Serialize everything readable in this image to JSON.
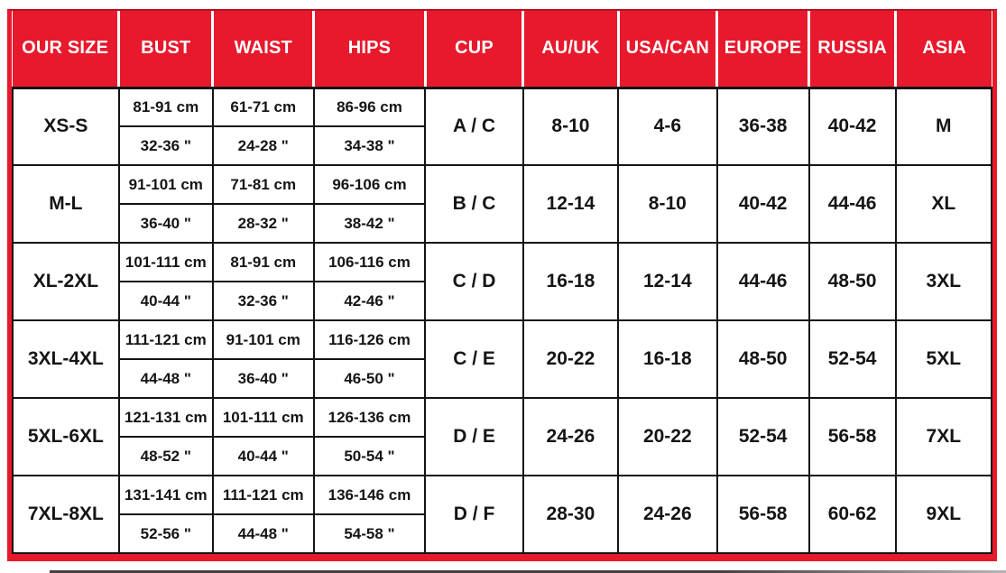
{
  "chart_data": {
    "type": "table",
    "columns": [
      "OUR SIZE",
      "BUST",
      "WAIST",
      "HIPS",
      "CUP",
      "AU/UK",
      "USA/CAN",
      "EUROPE",
      "RUSSIA",
      "ASIA"
    ],
    "rows": [
      {
        "our_size": "XS-S",
        "bust_cm": "81-91 cm",
        "bust_in": "32-36 \"",
        "waist_cm": "61-71 cm",
        "waist_in": "24-28 \"",
        "hips_cm": "86-96 cm",
        "hips_in": "34-38 \"",
        "cup": "A / C",
        "au_uk": "8-10",
        "usa_can": "4-6",
        "europe": "36-38",
        "russia": "40-42",
        "asia": "M"
      },
      {
        "our_size": "M-L",
        "bust_cm": "91-101 cm",
        "bust_in": "36-40 \"",
        "waist_cm": "71-81 cm",
        "waist_in": "28-32 \"",
        "hips_cm": "96-106 cm",
        "hips_in": "38-42 \"",
        "cup": "B / C",
        "au_uk": "12-14",
        "usa_can": "8-10",
        "europe": "40-42",
        "russia": "44-46",
        "asia": "XL"
      },
      {
        "our_size": "XL-2XL",
        "bust_cm": "101-111 cm",
        "bust_in": "40-44 \"",
        "waist_cm": "81-91 cm",
        "waist_in": "32-36 \"",
        "hips_cm": "106-116 cm",
        "hips_in": "42-46 \"",
        "cup": "C / D",
        "au_uk": "16-18",
        "usa_can": "12-14",
        "europe": "44-46",
        "russia": "48-50",
        "asia": "3XL"
      },
      {
        "our_size": "3XL-4XL",
        "bust_cm": "111-121 cm",
        "bust_in": "44-48 \"",
        "waist_cm": "91-101 cm",
        "waist_in": "36-40 \"",
        "hips_cm": "116-126 cm",
        "hips_in": "46-50 \"",
        "cup": "C / E",
        "au_uk": "20-22",
        "usa_can": "16-18",
        "europe": "48-50",
        "russia": "52-54",
        "asia": "5XL"
      },
      {
        "our_size": "5XL-6XL",
        "bust_cm": "121-131 cm",
        "bust_in": "48-52 \"",
        "waist_cm": "101-111 cm",
        "waist_in": "40-44 \"",
        "hips_cm": "126-136 cm",
        "hips_in": "50-54 \"",
        "cup": "D / E",
        "au_uk": "24-26",
        "usa_can": "20-22",
        "europe": "52-54",
        "russia": "56-58",
        "asia": "7XL"
      },
      {
        "our_size": "7XL-8XL",
        "bust_cm": "131-141 cm",
        "bust_in": "52-56 \"",
        "waist_cm": "111-121 cm",
        "waist_in": "44-48 \"",
        "hips_cm": "136-146 cm",
        "hips_in": "54-58 \"",
        "cup": "D / F",
        "au_uk": "28-30",
        "usa_can": "24-26",
        "europe": "56-58",
        "russia": "60-62",
        "asia": "9XL"
      }
    ]
  },
  "colors": {
    "header_red": "#E8192C",
    "header_red_dark_edge": "#B90F20",
    "header_text": "#FFFFFF",
    "grid_line": "#141414",
    "cell_text": "#151515",
    "cell_bg": "#FFFFFF"
  }
}
